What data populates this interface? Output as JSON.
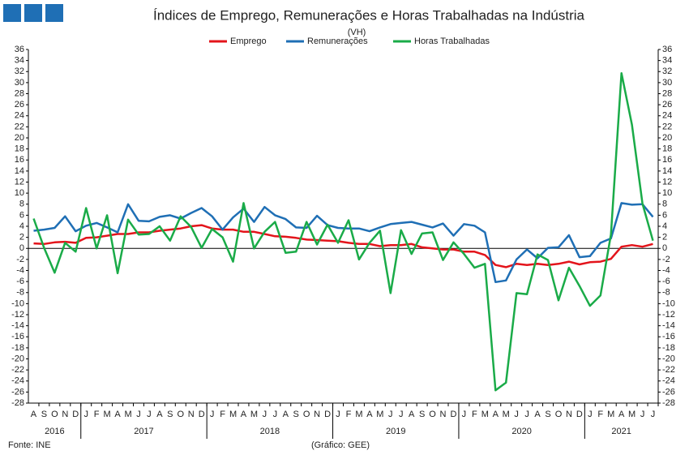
{
  "chart_data": {
    "type": "line",
    "title": "Índices de Emprego, Remunerações e Horas Trabalhadas na Indústria",
    "subtitle": "(VH)",
    "source": "Fonte: INE",
    "credit": "(Gráfico: GEE)",
    "categories": [
      "A",
      "S",
      "O",
      "N",
      "D",
      "J",
      "F",
      "M",
      "A",
      "M",
      "J",
      "J",
      "A",
      "S",
      "O",
      "N",
      "D",
      "J",
      "F",
      "M",
      "A",
      "M",
      "J",
      "J",
      "A",
      "S",
      "O",
      "N",
      "D",
      "J",
      "F",
      "M",
      "A",
      "M",
      "J",
      "J",
      "A",
      "S",
      "O",
      "N",
      "D",
      "J",
      "F",
      "M",
      "A",
      "M",
      "J",
      "J",
      "A",
      "S",
      "O",
      "N",
      "D",
      "J",
      "F",
      "M",
      "A",
      "M",
      "J",
      "J"
    ],
    "years": [
      "2016",
      "2017",
      "2018",
      "2019",
      "2020",
      "2021"
    ],
    "series": [
      {
        "name": "Emprego",
        "color": "#e3141b",
        "values": [
          0.9,
          0.8,
          1.1,
          1.2,
          1.0,
          1.9,
          2.0,
          2.3,
          2.6,
          2.6,
          2.9,
          2.9,
          3.2,
          3.4,
          3.6,
          4.0,
          4.2,
          3.6,
          3.4,
          3.4,
          3.0,
          3.0,
          2.6,
          2.2,
          2.1,
          1.9,
          1.6,
          1.5,
          1.4,
          1.3,
          1.0,
          0.8,
          0.8,
          0.4,
          0.6,
          0.6,
          0.8,
          0.2,
          0.0,
          -0.2,
          -0.2,
          -0.6,
          -0.6,
          -1.2,
          -3.0,
          -3.4,
          -2.8,
          -3.0,
          -2.8,
          -3.0,
          -2.8,
          -2.4,
          -2.9,
          -2.5,
          -2.4,
          -1.9,
          0.3,
          0.6,
          0.3,
          0.8
        ]
      },
      {
        "name": "Remunerações",
        "color": "#1f6fb5",
        "values": [
          3.2,
          3.4,
          3.7,
          5.8,
          3.1,
          4.1,
          4.6,
          3.8,
          2.9,
          8.0,
          5.0,
          4.9,
          5.7,
          6.0,
          5.4,
          6.4,
          7.3,
          5.8,
          3.4,
          5.6,
          7.2,
          4.8,
          7.5,
          6.0,
          5.3,
          3.8,
          3.7,
          5.9,
          4.2,
          3.7,
          3.6,
          3.6,
          3.1,
          3.8,
          4.4,
          4.6,
          4.8,
          4.3,
          3.8,
          4.5,
          2.3,
          4.4,
          4.1,
          2.9,
          -6.1,
          -5.8,
          -2.0,
          -0.2,
          -1.8,
          0.1,
          0.2,
          2.4,
          -1.6,
          -1.4,
          1.0,
          1.8,
          8.2,
          7.9,
          8.0,
          5.7
        ]
      },
      {
        "name": "Horas Trabalhadas",
        "color": "#1aab48",
        "values": [
          5.4,
          0.1,
          -4.4,
          1.0,
          -0.6,
          7.3,
          0.0,
          6.0,
          -4.5,
          5.2,
          2.5,
          2.6,
          4.0,
          1.4,
          5.8,
          3.9,
          0.1,
          3.5,
          2.0,
          -2.4,
          8.2,
          0.0,
          3.0,
          4.8,
          -0.8,
          -0.6,
          4.8,
          0.7,
          4.3,
          1.0,
          5.1,
          -2.0,
          1.0,
          3.2,
          -8.1,
          3.3,
          -1.0,
          2.7,
          2.9,
          -2.1,
          1.1,
          -1.0,
          -3.5,
          -2.8,
          -25.7,
          -24.3,
          -8.1,
          -8.3,
          -1.1,
          -2.1,
          -9.4,
          -3.5,
          -6.8,
          -10.4,
          -8.5,
          2.5,
          31.7,
          22.4,
          8.1,
          1.4
        ]
      }
    ],
    "ylim": [
      -28,
      36
    ],
    "yticks": [
      -28,
      -26,
      -24,
      -22,
      -20,
      -18,
      -16,
      -14,
      -12,
      -10,
      -8,
      -6,
      -4,
      -2,
      0,
      2,
      4,
      6,
      8,
      10,
      12,
      14,
      16,
      18,
      20,
      22,
      24,
      26,
      28,
      30,
      32,
      34,
      36
    ],
    "y2lim": [
      -28,
      36
    ],
    "y2ticks": [
      -28,
      -26,
      -24,
      -22,
      -20,
      -18,
      -16,
      -14,
      -12,
      -10,
      -8,
      -6,
      -4,
      -2,
      0,
      2,
      4,
      6,
      8,
      10,
      12,
      14,
      16,
      18,
      20,
      22,
      24,
      26,
      28,
      30,
      32,
      34,
      36
    ],
    "grid": false,
    "legend": "top"
  }
}
